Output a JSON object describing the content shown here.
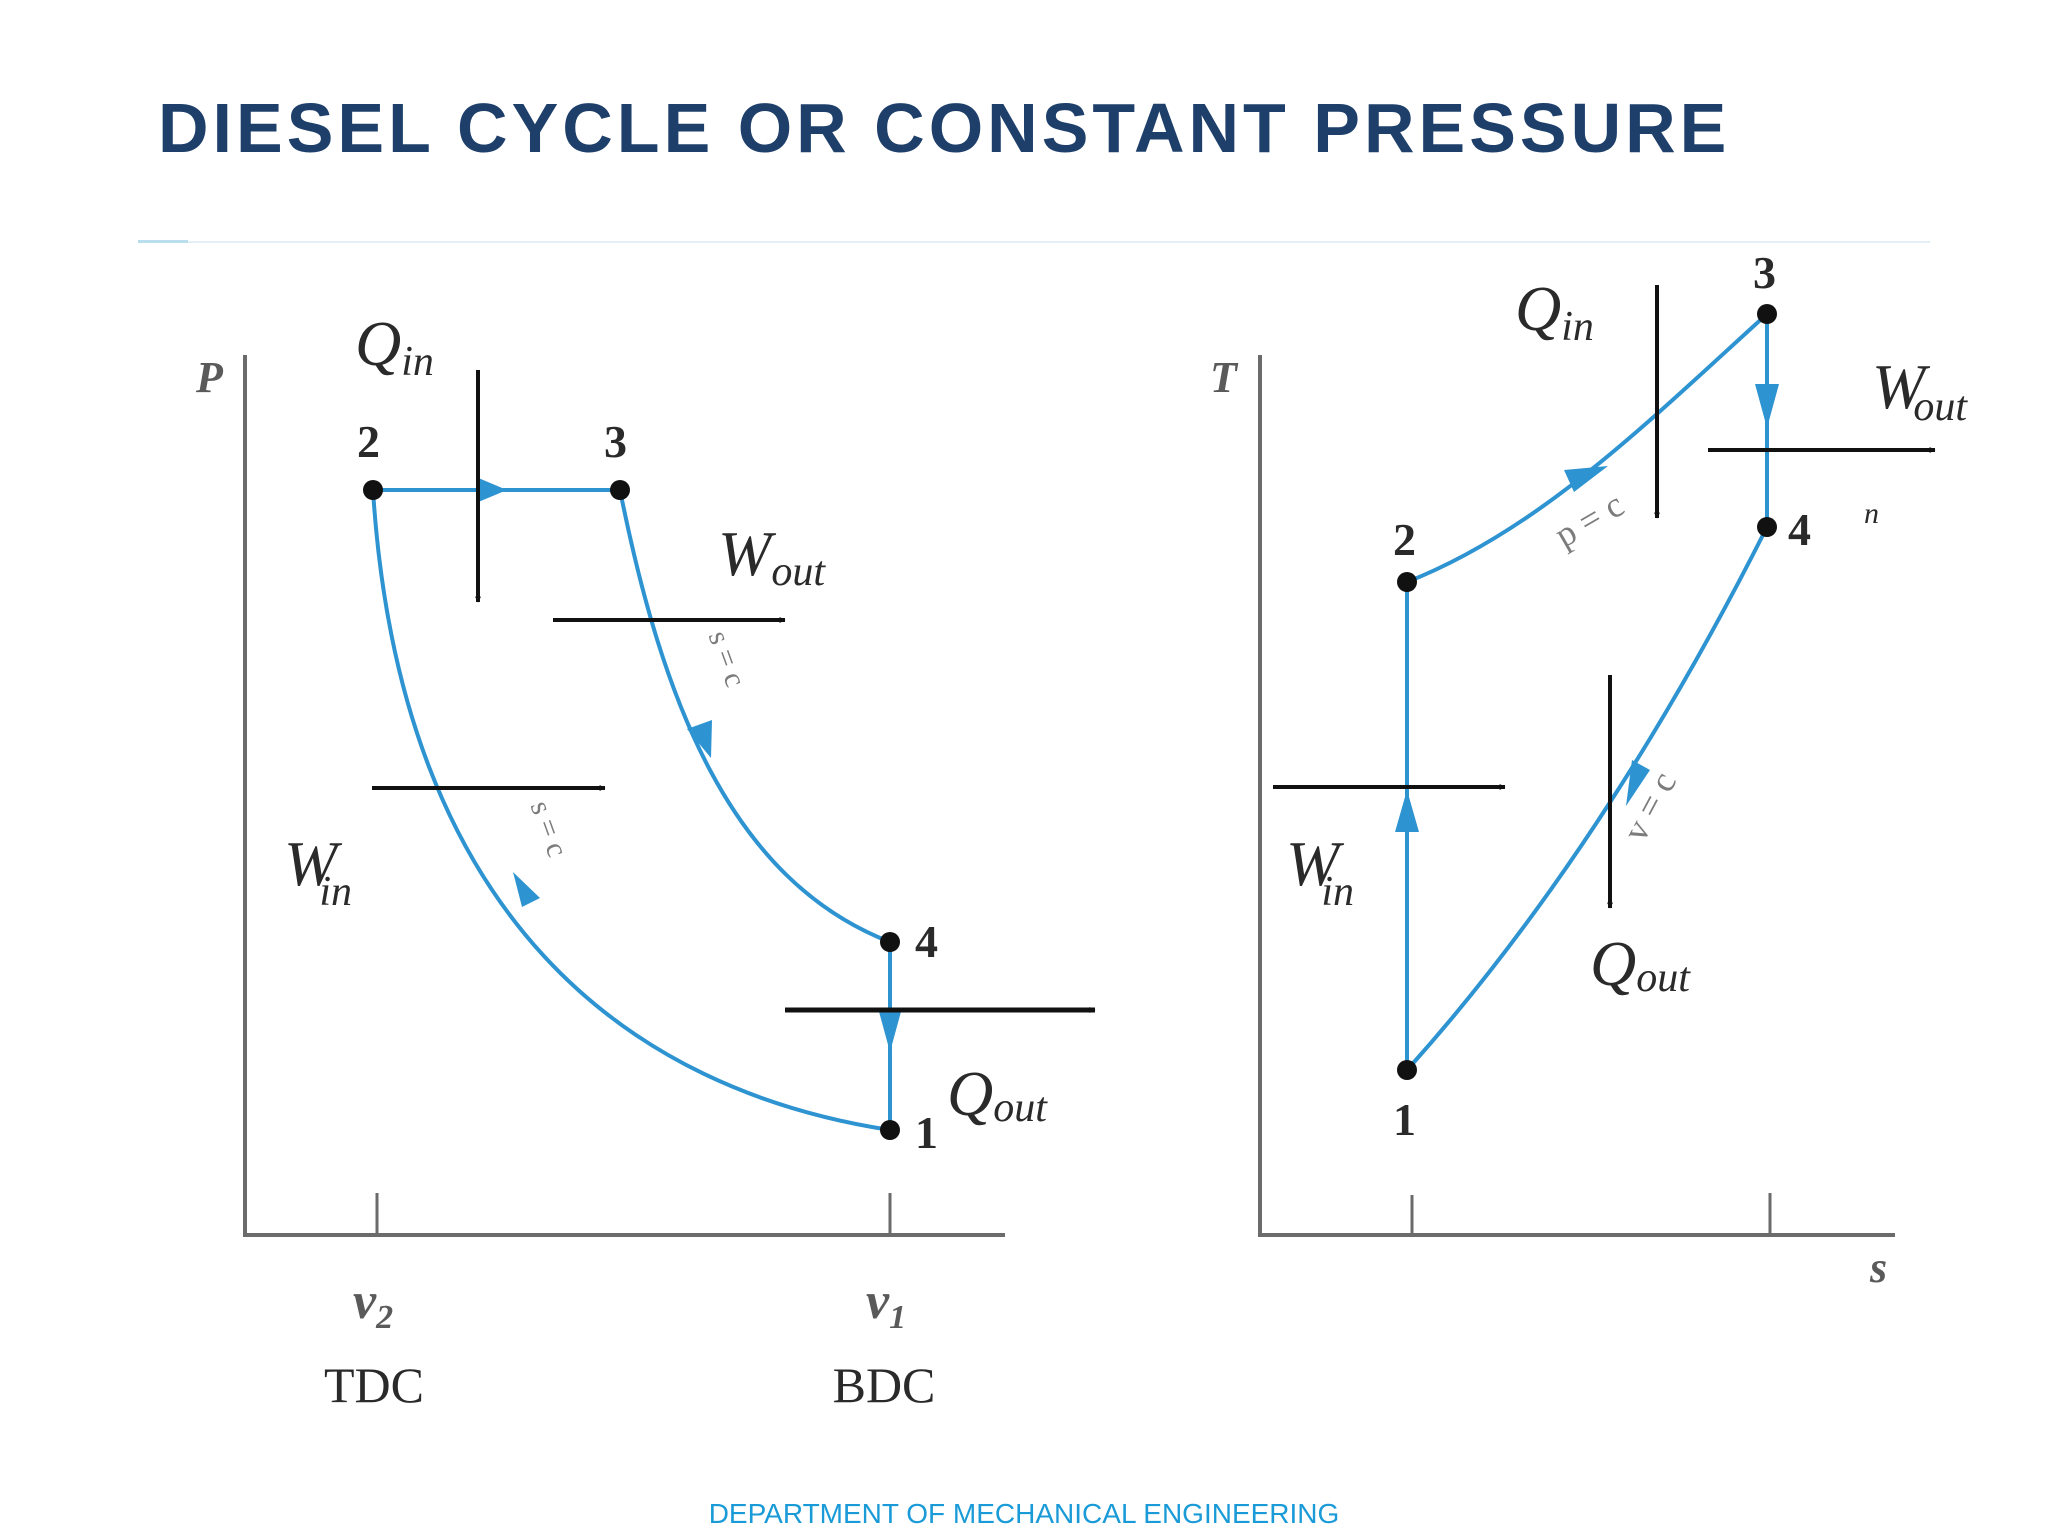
{
  "slide": {
    "title": "DIESEL CYCLE OR CONSTANT PRESSURE",
    "footer": "DEPARTMENT OF MECHANICAL ENGINEERING"
  },
  "pv_diagram": {
    "y_axis_label": "P",
    "point_labels": [
      "1",
      "2",
      "3",
      "4"
    ],
    "q_in": {
      "main": "Q",
      "sub": "in"
    },
    "w_out": {
      "main": "W",
      "sub": "out"
    },
    "w_in": {
      "main": "W",
      "sub": "in"
    },
    "q_out": {
      "main": "Q",
      "sub": "out"
    },
    "process_labels": {
      "expansion": "s = c",
      "compression": "s = c"
    },
    "x_ticks": [
      {
        "symbol": "v",
        "sub": "2",
        "caption": "TDC"
      },
      {
        "symbol": "v",
        "sub": "1",
        "caption": "BDC"
      }
    ]
  },
  "ts_diagram": {
    "y_axis_label": "T",
    "x_axis_label": "s",
    "point_labels": [
      "1",
      "2",
      "3",
      "4"
    ],
    "q_in": {
      "main": "Q",
      "sub": "in"
    },
    "w_out": {
      "main": "W",
      "sub": "out"
    },
    "w_in": {
      "main": "W",
      "sub": "in"
    },
    "q_out": {
      "main": "Q",
      "sub": "out"
    },
    "process_labels": {
      "heat_addition": "p = c",
      "heat_rejection": "v = c"
    },
    "stray_mark": "n"
  },
  "colors": {
    "process_line": "#2e93d1",
    "title": "#1d3f6a",
    "footer": "#1a9bd7",
    "axes": "#6b6b6b",
    "arrows": "#111111"
  }
}
